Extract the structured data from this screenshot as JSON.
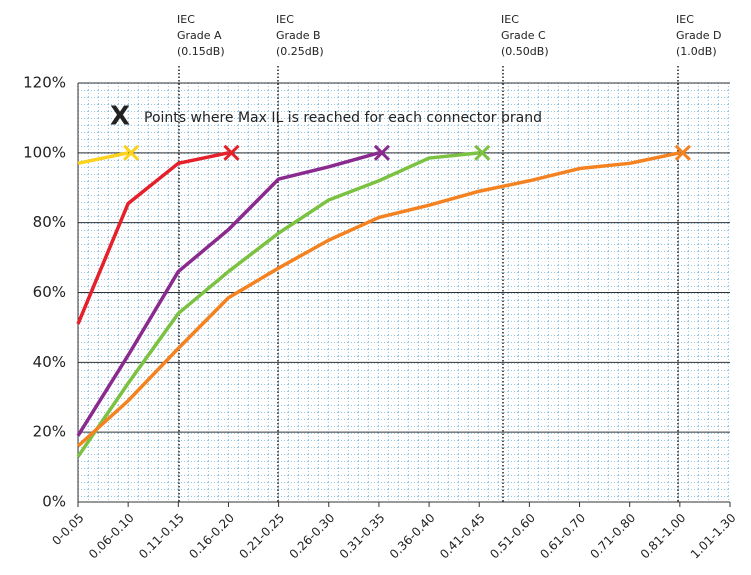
{
  "chart_data": {
    "type": "line",
    "categories": [
      "0-0.05",
      "0.06-0.10",
      "0.11-0.15",
      "0.16-0.20",
      "0.21-0.25",
      "0.26-0.30",
      "0.31-0.35",
      "0.36-0.40",
      "0.41-0.45",
      "0.51-0.60",
      "0.61-0.70",
      "0.71-0.80",
      "0.81-1.00",
      "1.01-1.30"
    ],
    "series": [
      {
        "color": "#fcd21c",
        "values": [
          97,
          100,
          null,
          null,
          null,
          null,
          null,
          null,
          null,
          null,
          null,
          null,
          null,
          null
        ]
      },
      {
        "color": "#e5202a",
        "values": [
          51,
          85.5,
          97,
          100,
          null,
          null,
          null,
          null,
          null,
          null,
          null,
          null,
          null,
          null
        ]
      },
      {
        "color": "#8b2a8e",
        "values": [
          19,
          42,
          66,
          78,
          92.5,
          96,
          100,
          null,
          null,
          null,
          null,
          null,
          null,
          null
        ]
      },
      {
        "color": "#7cc242",
        "values": [
          13,
          34,
          54,
          66,
          77,
          86.5,
          92,
          98.5,
          100,
          null,
          null,
          null,
          null,
          null
        ]
      },
      {
        "color": "#f58220",
        "values": [
          16,
          29,
          44,
          58.5,
          67,
          75,
          81.5,
          85,
          89,
          92,
          95.5,
          97,
          100,
          null
        ]
      }
    ],
    "ylim": [
      0,
      120
    ],
    "yticks": [
      {
        "value": 0,
        "label": "0%"
      },
      {
        "value": 20,
        "label": "20%"
      },
      {
        "value": 40,
        "label": "40%"
      },
      {
        "value": 60,
        "label": "60%"
      },
      {
        "value": 80,
        "label": "80%"
      },
      {
        "value": 100,
        "label": "100%"
      },
      {
        "value": 120,
        "label": "120%"
      }
    ],
    "grid": true,
    "legend_note": "Points where Max IL is reached for each connector brand",
    "annotations": [
      {
        "lines": [
          "IEC",
          "Grade A",
          "(0.15dB)"
        ]
      },
      {
        "lines": [
          "IEC",
          "Grade B",
          "(0.25dB)"
        ]
      },
      {
        "lines": [
          "IEC",
          "Grade C",
          "(0.50dB)"
        ]
      },
      {
        "lines": [
          "IEC",
          "Grade D",
          "(1.0dB)"
        ]
      }
    ]
  }
}
